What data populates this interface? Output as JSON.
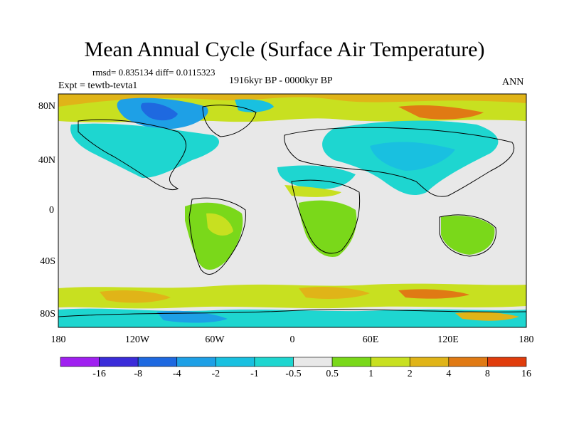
{
  "title": "Mean Annual Cycle (Surface Air Temperature)",
  "stats": "rmsd= 0.835134 diff= 0.0115323",
  "experiment": "Expt = tewtb-tevta1",
  "period": "1916kyr BP - 0000kyr BP",
  "season": "ANN",
  "lat_labels": [
    "80N",
    "40N",
    "0",
    "40S",
    "80S"
  ],
  "lon_labels": [
    "180",
    "120W",
    "60W",
    "0",
    "60E",
    "120E",
    "180"
  ],
  "colorbar": {
    "labels": [
      "-16",
      "-8",
      "-4",
      "-2",
      "-1",
      "-0.5",
      "0.5",
      "1",
      "2",
      "4",
      "8",
      "16"
    ],
    "colors": [
      "#a020f0",
      "#3b2cd9",
      "#1e69e0",
      "#1ea0e6",
      "#19c0e0",
      "#1ed6d0",
      "#e8e8e8",
      "#7ad81a",
      "#c8e020",
      "#e0b418",
      "#e07a14",
      "#e03c0c"
    ]
  },
  "colors": {
    "ocean_neutral": "#e8e8e8",
    "coast": "#000000"
  }
}
